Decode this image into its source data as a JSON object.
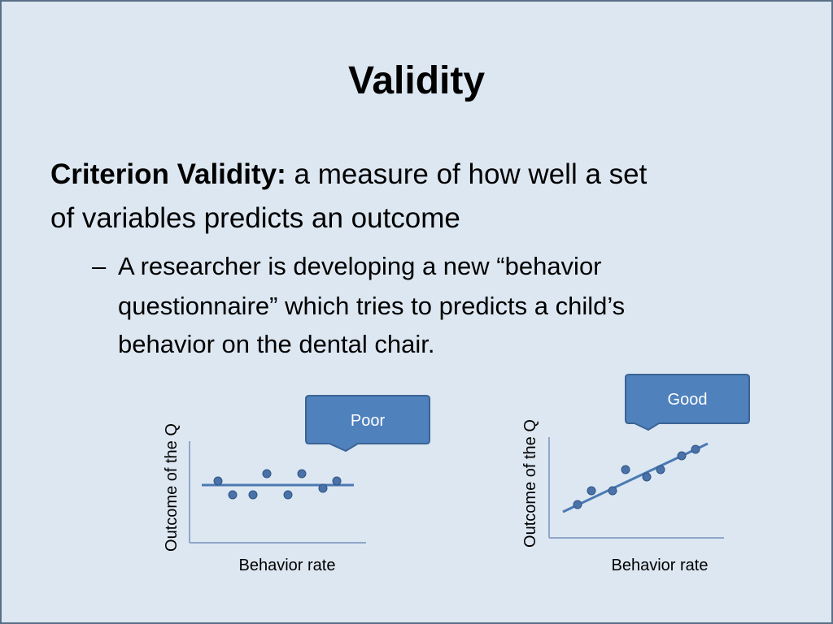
{
  "title": "Validity",
  "body": {
    "term": "Criterion Validity:",
    "definition_lines": [
      " a measure of how well a set",
      "of variables predicts an outcome"
    ]
  },
  "bullet": {
    "marker": "–",
    "lines": [
      "A researcher is developing a new “behavior",
      "questionnaire” which tries to predicts a child’s",
      "behavior on the dental chair."
    ]
  },
  "plots": [
    {
      "callout": "Poor",
      "y_label": "Outcome of the Q",
      "x_label": "Behavior rate"
    },
    {
      "callout": "Good",
      "y_label": "Outcome of the Q",
      "x_label": "Behavior rate"
    }
  ]
}
